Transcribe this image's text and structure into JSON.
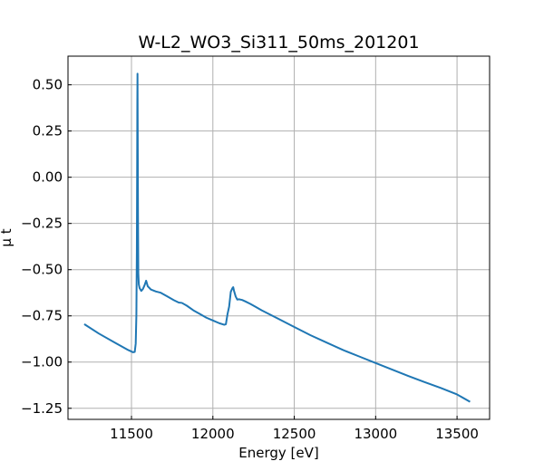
{
  "chart_data": {
    "type": "line",
    "title": "W-L2_WO3_Si311_50ms_201201",
    "xlabel": "Energy [eV]",
    "ylabel": "μ t",
    "xlim": [
      11110,
      13700
    ],
    "ylim": [
      -1.31,
      0.655
    ],
    "xticks": [
      11500,
      12000,
      12500,
      13000,
      13500
    ],
    "yticks": [
      0.5,
      0.25,
      0.0,
      -0.25,
      -0.5,
      -0.75,
      -1.0,
      -1.25
    ],
    "xtick_labels": [
      "11500",
      "12000",
      "12500",
      "13000",
      "13500"
    ],
    "ytick_labels": [
      "0.50",
      "0.25",
      "0.00",
      "−0.25",
      "−0.50",
      "−0.75",
      "−1.00",
      "−1.25"
    ],
    "grid": true,
    "series_color": "#1f77b4",
    "x": [
      11210,
      11300,
      11400,
      11480,
      11510,
      11520,
      11526,
      11530,
      11533,
      11535,
      11536,
      11537,
      11538,
      11540,
      11542,
      11545,
      11550,
      11560,
      11570,
      11580,
      11590,
      11600,
      11620,
      11650,
      11680,
      11720,
      11760,
      11790,
      11810,
      11840,
      11880,
      11920,
      11960,
      12000,
      12040,
      12070,
      12080,
      12090,
      12100,
      12110,
      12120,
      12125,
      12130,
      12140,
      12150,
      12160,
      12180,
      12200,
      12230,
      12260,
      12300,
      12400,
      12500,
      12600,
      12700,
      12800,
      12900,
      13000,
      13100,
      13200,
      13300,
      13400,
      13500,
      13580
    ],
    "y": [
      -0.795,
      -0.846,
      -0.896,
      -0.935,
      -0.947,
      -0.945,
      -0.9,
      -0.75,
      -0.4,
      0.1,
      0.4,
      0.56,
      0.3,
      -0.2,
      -0.52,
      -0.58,
      -0.6,
      -0.615,
      -0.605,
      -0.585,
      -0.56,
      -0.59,
      -0.608,
      -0.618,
      -0.625,
      -0.645,
      -0.665,
      -0.678,
      -0.68,
      -0.695,
      -0.72,
      -0.74,
      -0.76,
      -0.775,
      -0.79,
      -0.798,
      -0.795,
      -0.74,
      -0.7,
      -0.62,
      -0.6,
      -0.595,
      -0.615,
      -0.645,
      -0.662,
      -0.66,
      -0.664,
      -0.672,
      -0.685,
      -0.7,
      -0.72,
      -0.765,
      -0.81,
      -0.855,
      -0.895,
      -0.935,
      -0.97,
      -1.005,
      -1.04,
      -1.075,
      -1.108,
      -1.14,
      -1.175,
      -1.215
    ]
  }
}
